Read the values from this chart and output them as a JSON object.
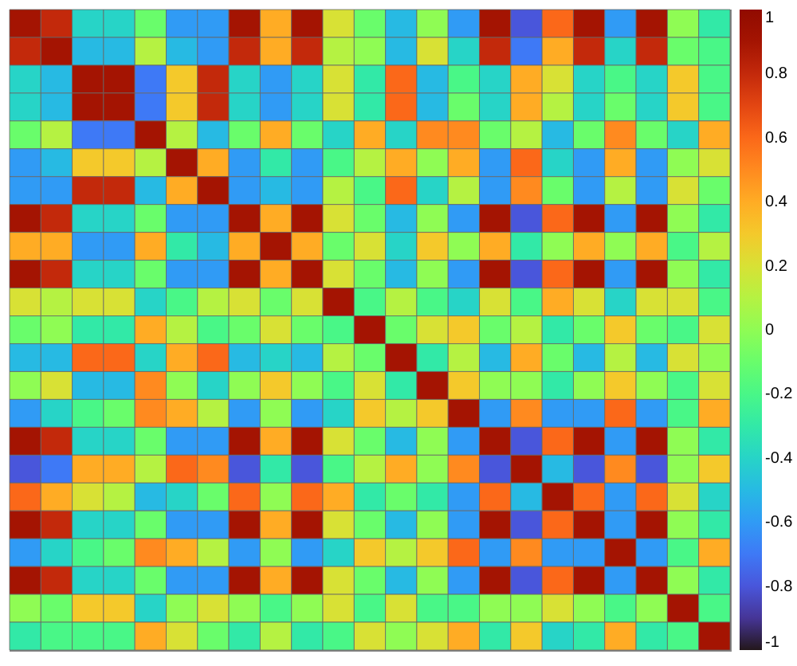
{
  "chart_data": {
    "type": "heatmap",
    "categories": [
      null,
      null,
      null,
      null,
      null,
      null,
      null,
      null,
      null,
      null,
      null,
      null,
      null,
      null,
      null,
      null,
      null,
      null,
      null,
      null,
      null,
      null,
      null
    ],
    "y_categories": [
      null,
      null,
      null,
      null,
      null,
      null,
      null,
      null,
      null,
      null,
      null,
      null,
      null,
      null,
      null,
      null,
      null,
      null,
      null,
      null,
      null,
      null,
      null
    ],
    "cells": [
      [
        0.9,
        0.8,
        -0.4,
        -0.4,
        -0.1,
        -0.6,
        -0.6,
        0.9,
        0.4,
        0.9,
        0.2,
        -0.1,
        -0.5,
        0,
        -0.6,
        0.9,
        -0.8,
        0.6,
        0.9,
        -0.6,
        0.9,
        0,
        -0.3
      ],
      [
        0.8,
        0.9,
        -0.5,
        -0.5,
        0.1,
        -0.5,
        -0.6,
        0.8,
        0.4,
        0.8,
        0.1,
        0,
        -0.5,
        0.2,
        -0.4,
        0.8,
        -0.7,
        0.4,
        0.8,
        -0.4,
        0.8,
        -0.1,
        -0.2
      ],
      [
        -0.4,
        -0.5,
        0.9,
        0.9,
        -0.7,
        0.3,
        0.8,
        -0.4,
        -0.6,
        -0.4,
        0.2,
        -0.3,
        0.6,
        -0.5,
        -0.2,
        -0.4,
        0.4,
        0.2,
        -0.4,
        -0.2,
        -0.4,
        0.3,
        -0.2
      ],
      [
        -0.4,
        -0.5,
        0.9,
        0.9,
        -0.7,
        0.3,
        0.8,
        -0.4,
        -0.6,
        -0.4,
        0.2,
        -0.3,
        0.6,
        -0.5,
        -0.1,
        -0.4,
        0.4,
        0.1,
        -0.4,
        -0.1,
        -0.4,
        0.3,
        -0.2
      ],
      [
        -0.1,
        0.1,
        -0.7,
        -0.7,
        0.9,
        0.1,
        -0.5,
        -0.1,
        0.4,
        -0.1,
        -0.4,
        0.4,
        -0.4,
        0.5,
        0.5,
        -0.1,
        0.1,
        -0.5,
        -0.1,
        0.5,
        -0.1,
        -0.4,
        0.4
      ],
      [
        -0.6,
        -0.5,
        0.3,
        0.3,
        0.1,
        0.9,
        0.4,
        -0.6,
        -0.3,
        -0.6,
        -0.2,
        0.1,
        0.4,
        0,
        0.4,
        -0.6,
        0.6,
        -0.4,
        -0.6,
        0.4,
        -0.6,
        0,
        0.2
      ],
      [
        -0.6,
        -0.6,
        0.8,
        0.8,
        -0.5,
        0.4,
        0.9,
        -0.6,
        -0.5,
        -0.6,
        0.1,
        -0.2,
        0.6,
        -0.4,
        0.1,
        -0.6,
        0.5,
        -0.1,
        -0.6,
        0.1,
        -0.6,
        0.2,
        -0.1
      ],
      [
        0.9,
        0.8,
        -0.4,
        -0.4,
        -0.1,
        -0.6,
        -0.6,
        0.9,
        0.4,
        0.9,
        0.2,
        -0.1,
        -0.5,
        0,
        -0.6,
        0.9,
        -0.8,
        0.6,
        0.9,
        -0.6,
        0.9,
        0,
        -0.3
      ],
      [
        0.4,
        0.4,
        -0.6,
        -0.6,
        0.4,
        -0.3,
        -0.5,
        0.4,
        0.9,
        0.4,
        -0.1,
        0.2,
        -0.4,
        0.3,
        0,
        0.4,
        -0.3,
        0,
        0.4,
        0,
        0.4,
        -0.2,
        0.1
      ],
      [
        0.9,
        0.8,
        -0.4,
        -0.4,
        -0.1,
        -0.6,
        -0.6,
        0.9,
        0.4,
        0.9,
        0.2,
        -0.1,
        -0.5,
        0,
        -0.6,
        0.9,
        -0.8,
        0.6,
        0.9,
        -0.6,
        0.9,
        0,
        -0.3
      ],
      [
        0.2,
        0.1,
        0.2,
        0.2,
        -0.4,
        -0.2,
        0.1,
        0.2,
        -0.1,
        0.2,
        0.9,
        -0.2,
        0.1,
        -0.2,
        -0.4,
        0.2,
        -0.2,
        0.4,
        0.2,
        -0.4,
        0.2,
        0.2,
        -0.2
      ],
      [
        -0.1,
        0,
        -0.3,
        -0.3,
        0.4,
        0.1,
        -0.2,
        -0.1,
        0.2,
        -0.1,
        -0.2,
        0.9,
        -0.1,
        0.2,
        0.3,
        -0.1,
        0.1,
        -0.3,
        -0.1,
        0.3,
        -0.1,
        -0.2,
        0.2
      ],
      [
        -0.5,
        -0.5,
        0.6,
        0.6,
        -0.4,
        0.4,
        0.6,
        -0.5,
        -0.4,
        -0.5,
        0.1,
        -0.1,
        0.9,
        -0.3,
        0.1,
        -0.5,
        0.4,
        -0.1,
        -0.5,
        0.1,
        -0.5,
        0.2,
        0
      ],
      [
        0,
        0.2,
        -0.5,
        -0.5,
        0.5,
        0,
        -0.4,
        0,
        0.3,
        0,
        -0.2,
        0.2,
        -0.3,
        0.9,
        0.3,
        0,
        0,
        -0.3,
        0,
        0.3,
        0,
        -0.2,
        0.2
      ],
      [
        -0.6,
        -0.4,
        -0.2,
        -0.1,
        0.5,
        0.4,
        0.1,
        -0.6,
        0,
        -0.6,
        -0.4,
        0.3,
        0.1,
        0.3,
        0.9,
        -0.6,
        0.5,
        -0.6,
        -0.6,
        0.6,
        -0.6,
        -0.2,
        0.4
      ],
      [
        0.9,
        0.8,
        -0.4,
        -0.4,
        -0.1,
        -0.6,
        -0.6,
        0.9,
        0.4,
        0.9,
        0.2,
        -0.1,
        -0.5,
        0,
        -0.6,
        0.9,
        -0.8,
        0.6,
        0.9,
        -0.6,
        0.9,
        0,
        -0.3
      ],
      [
        -0.8,
        -0.7,
        0.4,
        0.4,
        0.1,
        0.6,
        0.5,
        -0.8,
        -0.3,
        -0.8,
        -0.2,
        0.1,
        0.4,
        0,
        0.5,
        -0.8,
        0.9,
        -0.5,
        -0.8,
        0.5,
        -0.8,
        0,
        0.3
      ],
      [
        0.6,
        0.4,
        0.2,
        0.1,
        -0.5,
        -0.4,
        -0.1,
        0.6,
        0,
        0.6,
        0.4,
        -0.3,
        -0.1,
        -0.3,
        -0.6,
        0.6,
        -0.5,
        0.9,
        0.6,
        -0.6,
        0.6,
        0.2,
        -0.4
      ],
      [
        0.9,
        0.8,
        -0.4,
        -0.4,
        -0.1,
        -0.6,
        -0.6,
        0.9,
        0.4,
        0.9,
        0.2,
        -0.1,
        -0.5,
        0,
        -0.6,
        0.9,
        -0.8,
        0.6,
        0.9,
        -0.6,
        0.9,
        0,
        -0.3
      ],
      [
        -0.6,
        -0.4,
        -0.2,
        -0.1,
        0.5,
        0.4,
        0.1,
        -0.6,
        0,
        -0.6,
        -0.4,
        0.3,
        0.1,
        0.3,
        0.6,
        -0.6,
        0.5,
        -0.6,
        -0.6,
        0.9,
        -0.6,
        -0.2,
        0.4
      ],
      [
        0.9,
        0.8,
        -0.4,
        -0.4,
        -0.1,
        -0.6,
        -0.6,
        0.9,
        0.4,
        0.9,
        0.2,
        -0.1,
        -0.5,
        0,
        -0.6,
        0.9,
        -0.8,
        0.6,
        0.9,
        -0.6,
        0.9,
        0,
        -0.3
      ],
      [
        0,
        -0.1,
        0.3,
        0.3,
        -0.4,
        0,
        0.2,
        0,
        -0.2,
        0,
        0.2,
        -0.2,
        0.2,
        -0.2,
        -0.2,
        0,
        0,
        0.2,
        0,
        -0.2,
        0,
        0.9,
        -0.2
      ],
      [
        -0.3,
        -0.2,
        -0.2,
        -0.2,
        0.4,
        0.2,
        -0.1,
        -0.3,
        0.1,
        -0.3,
        -0.2,
        0.2,
        0,
        0.2,
        0.4,
        -0.3,
        0.3,
        -0.4,
        -0.3,
        0.4,
        -0.3,
        -0.2,
        0.9
      ]
    ],
    "clim": [
      -1,
      1
    ],
    "cticks": [
      -1,
      -0.8,
      -0.6,
      -0.4,
      -0.2,
      0,
      0.2,
      0.4,
      0.6,
      0.8,
      1
    ],
    "tick_labels": false
  }
}
